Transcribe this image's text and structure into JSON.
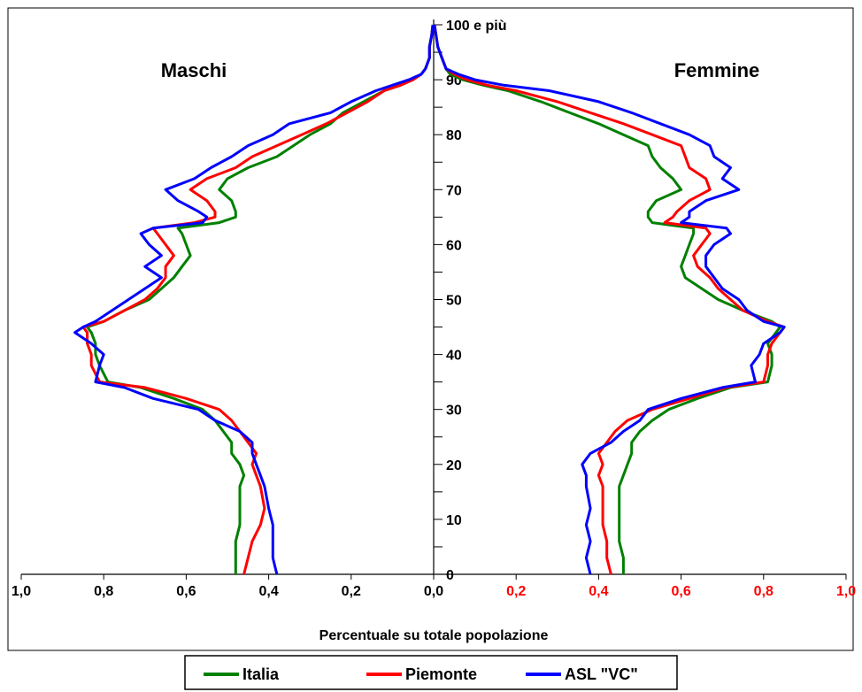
{
  "chart_data": {
    "type": "line",
    "subtype": "population-pyramid",
    "left_label": "Maschi",
    "right_label": "Femmine",
    "xlabel": "Percentuale su totale popolazione",
    "x_ticks_left": [
      "1,0",
      "0,8",
      "0,6",
      "0,4",
      "0,2"
    ],
    "x_ticks_right": [
      "0,0",
      "0,2",
      "0,4",
      "0,6",
      "0,8",
      "1,0"
    ],
    "x_tick_values_left": [
      1.0,
      0.8,
      0.6,
      0.4,
      0.2
    ],
    "x_tick_values_right": [
      0.0,
      0.2,
      0.4,
      0.6,
      0.8,
      1.0
    ],
    "left_tick_color": "#000000",
    "right_tick_color": "#ff0000",
    "y_ticks": [
      "0",
      "10",
      "20",
      "30",
      "40",
      "50",
      "60",
      "70",
      "80",
      "90",
      "100 e più"
    ],
    "y_tick_values": [
      0,
      10,
      20,
      30,
      40,
      50,
      60,
      70,
      80,
      90,
      100
    ],
    "xlim": [
      0,
      1.0
    ],
    "ylim": [
      0,
      100
    ],
    "grid": false,
    "legend_position": "bottom",
    "series": [
      {
        "name": "Italia",
        "color": "#008000",
        "ages": [
          0,
          3,
          6,
          9,
          12,
          16,
          18,
          20,
          22,
          24,
          26,
          28,
          30,
          32,
          34,
          35,
          38,
          40,
          42,
          44,
          45,
          46,
          48,
          50,
          52,
          54,
          56,
          58,
          60,
          62,
          63,
          64,
          65,
          66,
          68,
          70,
          72,
          74,
          76,
          78,
          80,
          82,
          84,
          86,
          88,
          89,
          90,
          91,
          92,
          94,
          96,
          98,
          100
        ],
        "male": [
          0.48,
          0.48,
          0.48,
          0.47,
          0.47,
          0.47,
          0.46,
          0.47,
          0.49,
          0.49,
          0.51,
          0.53,
          0.56,
          0.63,
          0.71,
          0.79,
          0.81,
          0.82,
          0.82,
          0.83,
          0.84,
          0.8,
          0.75,
          0.69,
          0.66,
          0.63,
          0.61,
          0.59,
          0.6,
          0.61,
          0.62,
          0.52,
          0.48,
          0.48,
          0.49,
          0.52,
          0.5,
          0.45,
          0.38,
          0.34,
          0.3,
          0.25,
          0.22,
          0.17,
          0.12,
          0.08,
          0.05,
          0.03,
          0.02,
          0.01,
          0.01,
          0.005,
          0.002
        ],
        "female": [
          0.46,
          0.46,
          0.45,
          0.45,
          0.45,
          0.45,
          0.46,
          0.47,
          0.48,
          0.48,
          0.5,
          0.53,
          0.57,
          0.64,
          0.72,
          0.81,
          0.82,
          0.82,
          0.81,
          0.83,
          0.84,
          0.82,
          0.75,
          0.69,
          0.65,
          0.61,
          0.6,
          0.61,
          0.62,
          0.63,
          0.63,
          0.53,
          0.52,
          0.52,
          0.54,
          0.6,
          0.58,
          0.55,
          0.53,
          0.52,
          0.46,
          0.4,
          0.33,
          0.26,
          0.18,
          0.12,
          0.07,
          0.04,
          0.03,
          0.02,
          0.01,
          0.006,
          0.002
        ]
      },
      {
        "name": "Piemonte",
        "color": "#ff0000",
        "ages": [
          0,
          3,
          6,
          9,
          12,
          16,
          18,
          20,
          22,
          24,
          26,
          28,
          30,
          32,
          34,
          35,
          38,
          40,
          42,
          44,
          45,
          46,
          48,
          50,
          52,
          54,
          56,
          58,
          60,
          62,
          63,
          64,
          65,
          66,
          68,
          70,
          72,
          74,
          76,
          78,
          80,
          82,
          84,
          86,
          88,
          89,
          90,
          91,
          92,
          94,
          96,
          98,
          100
        ],
        "male": [
          0.46,
          0.45,
          0.44,
          0.42,
          0.41,
          0.42,
          0.43,
          0.44,
          0.43,
          0.45,
          0.47,
          0.49,
          0.52,
          0.6,
          0.7,
          0.81,
          0.83,
          0.83,
          0.84,
          0.84,
          0.85,
          0.8,
          0.75,
          0.7,
          0.67,
          0.65,
          0.65,
          0.63,
          0.65,
          0.67,
          0.68,
          0.58,
          0.53,
          0.53,
          0.55,
          0.59,
          0.55,
          0.48,
          0.44,
          0.38,
          0.32,
          0.26,
          0.21,
          0.16,
          0.12,
          0.08,
          0.05,
          0.03,
          0.02,
          0.01,
          0.01,
          0.005,
          0.002
        ],
        "female": [
          0.43,
          0.42,
          0.42,
          0.41,
          0.41,
          0.41,
          0.4,
          0.41,
          0.4,
          0.42,
          0.44,
          0.47,
          0.53,
          0.62,
          0.71,
          0.8,
          0.81,
          0.81,
          0.82,
          0.84,
          0.85,
          0.81,
          0.75,
          0.72,
          0.69,
          0.67,
          0.64,
          0.63,
          0.65,
          0.67,
          0.66,
          0.56,
          0.58,
          0.59,
          0.62,
          0.67,
          0.66,
          0.62,
          0.61,
          0.6,
          0.53,
          0.46,
          0.38,
          0.3,
          0.2,
          0.13,
          0.08,
          0.05,
          0.03,
          0.02,
          0.01,
          0.006,
          0.002
        ]
      },
      {
        "name": "ASL \"VC\"",
        "color": "#0000ff",
        "ages": [
          0,
          3,
          6,
          9,
          12,
          16,
          18,
          20,
          22,
          24,
          26,
          28,
          30,
          32,
          34,
          35,
          38,
          40,
          42,
          44,
          45,
          46,
          48,
          50,
          52,
          54,
          56,
          58,
          60,
          62,
          63,
          64,
          65,
          66,
          68,
          70,
          72,
          74,
          76,
          78,
          80,
          82,
          84,
          86,
          88,
          89,
          90,
          91,
          92,
          94,
          96,
          98,
          100
        ],
        "male": [
          0.38,
          0.39,
          0.39,
          0.39,
          0.4,
          0.41,
          0.42,
          0.43,
          0.44,
          0.44,
          0.47,
          0.53,
          0.57,
          0.68,
          0.75,
          0.82,
          0.81,
          0.8,
          0.83,
          0.87,
          0.85,
          0.82,
          0.78,
          0.74,
          0.7,
          0.66,
          0.7,
          0.66,
          0.69,
          0.71,
          0.68,
          0.56,
          0.55,
          0.57,
          0.62,
          0.65,
          0.58,
          0.54,
          0.49,
          0.45,
          0.39,
          0.35,
          0.25,
          0.2,
          0.14,
          0.1,
          0.06,
          0.03,
          0.02,
          0.01,
          0.01,
          0.005,
          0.002
        ],
        "female": [
          0.38,
          0.37,
          0.38,
          0.37,
          0.38,
          0.37,
          0.37,
          0.36,
          0.38,
          0.43,
          0.46,
          0.5,
          0.52,
          0.6,
          0.7,
          0.78,
          0.77,
          0.79,
          0.8,
          0.84,
          0.85,
          0.8,
          0.76,
          0.74,
          0.7,
          0.68,
          0.66,
          0.66,
          0.68,
          0.72,
          0.71,
          0.6,
          0.62,
          0.62,
          0.66,
          0.74,
          0.7,
          0.72,
          0.68,
          0.67,
          0.62,
          0.55,
          0.48,
          0.4,
          0.28,
          0.17,
          0.1,
          0.06,
          0.03,
          0.02,
          0.01,
          0.006,
          0.002
        ]
      }
    ]
  }
}
